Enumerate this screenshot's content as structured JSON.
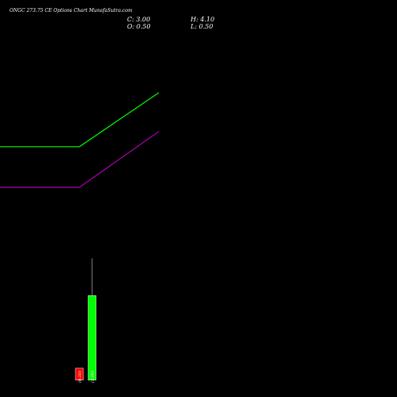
{
  "header": {
    "title": "ONGC 273.75 CE Options  Chart MunafaSutra.com",
    "close": "C: 3.00",
    "open": "O: 0.50",
    "high": "H: 4.10",
    "low": "L: 0.50"
  },
  "chart_data": {
    "type": "candlestick",
    "background": "#000000",
    "x_tick_labels": [
      "(0.50)",
      "(3.00)"
    ],
    "candles": [
      {
        "label": "(0.50)",
        "open": 0.85,
        "high": 0.85,
        "low": 0.5,
        "close": 0.5,
        "color": "#ff0000"
      },
      {
        "label": "(3.00)",
        "open": 0.5,
        "high": 4.1,
        "low": 0.5,
        "close": 3.0,
        "color": "#00ff00"
      }
    ],
    "lines": [
      {
        "color": "#00ff00",
        "points": [
          [
            0,
            7.4
          ],
          [
            100,
            7.4
          ],
          [
            200,
            9.0
          ]
        ]
      },
      {
        "color": "#aa00aa",
        "points": [
          [
            0,
            6.2
          ],
          [
            100,
            6.2
          ],
          [
            200,
            7.85
          ]
        ]
      }
    ],
    "ylim": [
      0,
      10.8
    ]
  }
}
